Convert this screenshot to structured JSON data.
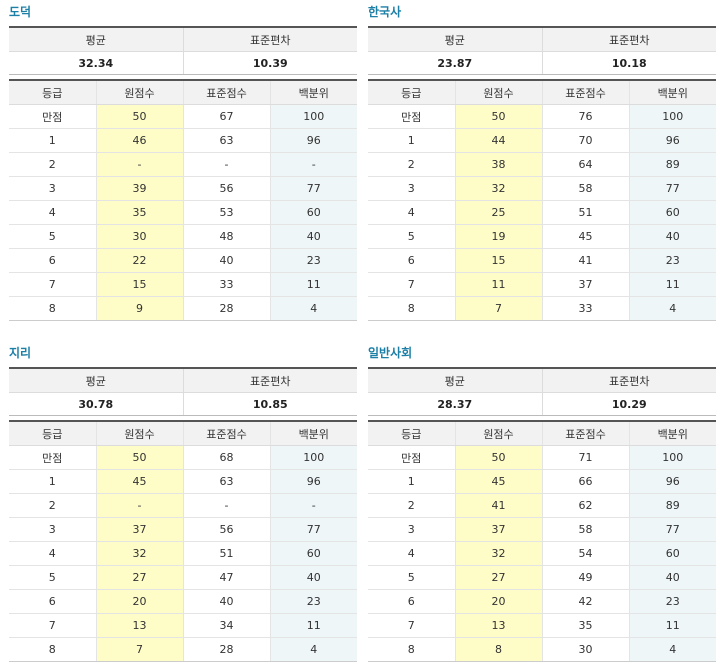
{
  "headers": {
    "mean": "평균",
    "std_dev": "표준편차",
    "grade": "등급",
    "raw_score": "원점수",
    "standard_score": "표준점수",
    "percentile": "백분위"
  },
  "subjects": [
    {
      "name": "도덕",
      "mean": "32.34",
      "std_dev": "10.39",
      "rows": [
        {
          "grade": "만점",
          "raw": "50",
          "std": "67",
          "pct": "100"
        },
        {
          "grade": "1",
          "raw": "46",
          "std": "63",
          "pct": "96"
        },
        {
          "grade": "2",
          "raw": "-",
          "std": "-",
          "pct": "-"
        },
        {
          "grade": "3",
          "raw": "39",
          "std": "56",
          "pct": "77"
        },
        {
          "grade": "4",
          "raw": "35",
          "std": "53",
          "pct": "60"
        },
        {
          "grade": "5",
          "raw": "30",
          "std": "48",
          "pct": "40"
        },
        {
          "grade": "6",
          "raw": "22",
          "std": "40",
          "pct": "23"
        },
        {
          "grade": "7",
          "raw": "15",
          "std": "33",
          "pct": "11"
        },
        {
          "grade": "8",
          "raw": "9",
          "std": "28",
          "pct": "4"
        }
      ]
    },
    {
      "name": "한국사",
      "mean": "23.87",
      "std_dev": "10.18",
      "rows": [
        {
          "grade": "만점",
          "raw": "50",
          "std": "76",
          "pct": "100"
        },
        {
          "grade": "1",
          "raw": "44",
          "std": "70",
          "pct": "96"
        },
        {
          "grade": "2",
          "raw": "38",
          "std": "64",
          "pct": "89"
        },
        {
          "grade": "3",
          "raw": "32",
          "std": "58",
          "pct": "77"
        },
        {
          "grade": "4",
          "raw": "25",
          "std": "51",
          "pct": "60"
        },
        {
          "grade": "5",
          "raw": "19",
          "std": "45",
          "pct": "40"
        },
        {
          "grade": "6",
          "raw": "15",
          "std": "41",
          "pct": "23"
        },
        {
          "grade": "7",
          "raw": "11",
          "std": "37",
          "pct": "11"
        },
        {
          "grade": "8",
          "raw": "7",
          "std": "33",
          "pct": "4"
        }
      ]
    },
    {
      "name": "지리",
      "mean": "30.78",
      "std_dev": "10.85",
      "rows": [
        {
          "grade": "만점",
          "raw": "50",
          "std": "68",
          "pct": "100"
        },
        {
          "grade": "1",
          "raw": "45",
          "std": "63",
          "pct": "96"
        },
        {
          "grade": "2",
          "raw": "-",
          "std": "-",
          "pct": "-"
        },
        {
          "grade": "3",
          "raw": "37",
          "std": "56",
          "pct": "77"
        },
        {
          "grade": "4",
          "raw": "32",
          "std": "51",
          "pct": "60"
        },
        {
          "grade": "5",
          "raw": "27",
          "std": "47",
          "pct": "40"
        },
        {
          "grade": "6",
          "raw": "20",
          "std": "40",
          "pct": "23"
        },
        {
          "grade": "7",
          "raw": "13",
          "std": "34",
          "pct": "11"
        },
        {
          "grade": "8",
          "raw": "7",
          "std": "28",
          "pct": "4"
        }
      ]
    },
    {
      "name": "일반사회",
      "mean": "28.37",
      "std_dev": "10.29",
      "rows": [
        {
          "grade": "만점",
          "raw": "50",
          "std": "71",
          "pct": "100"
        },
        {
          "grade": "1",
          "raw": "45",
          "std": "66",
          "pct": "96"
        },
        {
          "grade": "2",
          "raw": "41",
          "std": "62",
          "pct": "89"
        },
        {
          "grade": "3",
          "raw": "37",
          "std": "58",
          "pct": "77"
        },
        {
          "grade": "4",
          "raw": "32",
          "std": "54",
          "pct": "60"
        },
        {
          "grade": "5",
          "raw": "27",
          "std": "49",
          "pct": "40"
        },
        {
          "grade": "6",
          "raw": "20",
          "std": "42",
          "pct": "23"
        },
        {
          "grade": "7",
          "raw": "13",
          "std": "35",
          "pct": "11"
        },
        {
          "grade": "8",
          "raw": "8",
          "std": "30",
          "pct": "4"
        }
      ]
    }
  ]
}
